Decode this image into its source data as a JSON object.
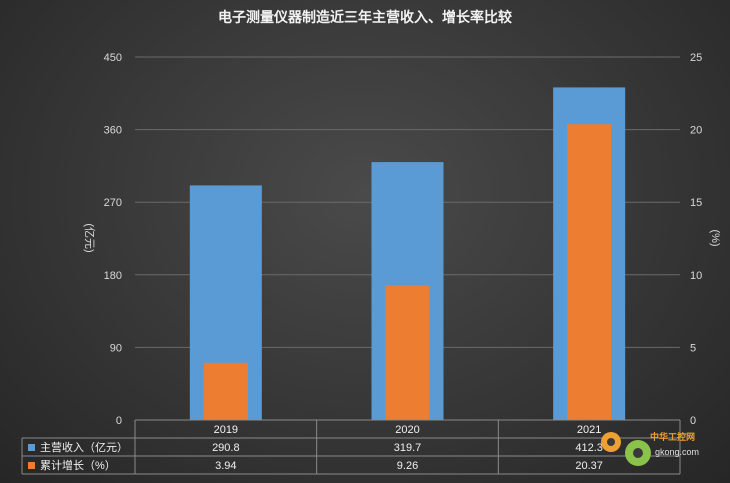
{
  "chart_data": {
    "type": "bar",
    "title": "电子测量仪器制造近三年主营收入、增长率比较",
    "categories": [
      "2019",
      "2020",
      "2021"
    ],
    "series": [
      {
        "name": "主营收入（亿元）",
        "values": [
          290.8,
          319.7,
          412.3
        ],
        "color": "#5b9bd5",
        "axis": "left"
      },
      {
        "name": "累计增长（%）",
        "values": [
          3.94,
          9.26,
          20.37
        ],
        "color": "#ed7d31",
        "axis": "right"
      }
    ],
    "data_table": {
      "rows": [
        {
          "label": "主营收入（亿元）",
          "values": [
            "290.8",
            "319.7",
            "412.3"
          ]
        },
        {
          "label": "累计增长（%）",
          "values": [
            "3.94",
            "9.26",
            "20.37"
          ]
        }
      ]
    },
    "ylabel": "(亿元)",
    "ylabel_right": "(%)",
    "ylim": [
      0,
      450
    ],
    "yticks": [
      "0",
      "90",
      "180",
      "270",
      "360",
      "450"
    ],
    "ylim_right": [
      0,
      25
    ],
    "yticks_right": [
      "0",
      "5",
      "10",
      "15",
      "20",
      "25"
    ],
    "grid": true,
    "legend": "data-table"
  },
  "watermark": {
    "text": "中华工控网",
    "sub": "gkong.com"
  }
}
